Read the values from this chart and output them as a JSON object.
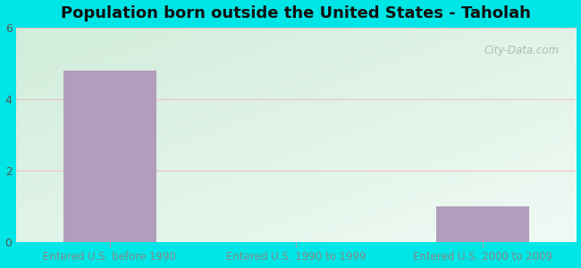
{
  "title": "Population born outside the United States - Taholah",
  "categories": [
    "Entered U.S. before 1990",
    "Entered U.S. 1990 to 1999",
    "Entered U.S. 2000 to 2009"
  ],
  "values": [
    4.8,
    0,
    1.0
  ],
  "bar_color": "#b39dbd",
  "bar_edgecolor": "#b39dbd",
  "ylim": [
    0,
    6
  ],
  "yticks": [
    0,
    2,
    4,
    6
  ],
  "outer_bg": "#00e5e5",
  "grid_color": "#f0c0c8",
  "xtick_color": "#888888",
  "ytick_color": "#555555",
  "title_fontsize": 13,
  "watermark": "City-Data.com",
  "bg_left_top": "#c8e6c9",
  "bg_right_bottom": "#e8f8f0"
}
